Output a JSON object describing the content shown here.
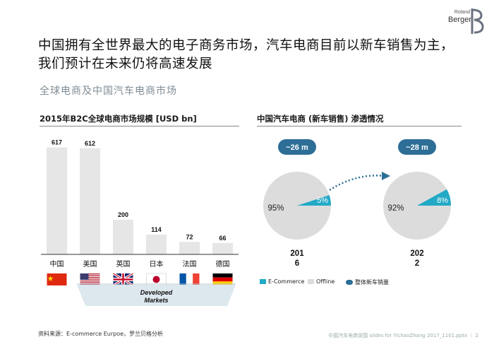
{
  "brand": {
    "top": "Roland",
    "name": "Berger"
  },
  "headline": "中国拥有全世界最大的电子商务市场，汽车电商目前以新车销售为主，我们预计在未来仍将高速发展",
  "subtitle": "全球电商及中国汽车电商市场",
  "colors": {
    "bar": "#e6e6e6",
    "pie_bg": "#dcdcdc",
    "accent": "#22a9c6",
    "pill": "#2c6e96",
    "bracket": "#dde7ee"
  },
  "left_panel": {
    "title": "2015年B2C全球电商市场规模 [USD bn]",
    "bracket_label_1": "Developed",
    "bracket_label_2": "Markets"
  },
  "right_panel": {
    "title": "中国汽车电商 (新车销售) 渗透情况",
    "legend": [
      "E-Commerce",
      "Offline",
      "整体新车销量"
    ]
  },
  "chart_data": [
    {
      "type": "bar",
      "title": "2015年B2C全球电商市场规模 [USD bn]",
      "categories": [
        "中国",
        "美国",
        "英国",
        "日本",
        "法国",
        "德国"
      ],
      "values": [
        617,
        612,
        200,
        114,
        72,
        66
      ],
      "flag_icons": [
        "china-flag-icon",
        "usa-flag-icon",
        "uk-flag-icon",
        "japan-flag-icon",
        "france-flag-icon",
        "germany-flag-icon"
      ],
      "ylim": [
        0,
        640
      ],
      "grid": false
    },
    {
      "type": "pie",
      "title": "中国汽车电商 (新车销售) 渗透情况",
      "pies": [
        {
          "year_top": "201",
          "year_bottom": "6",
          "total": "~26 m",
          "slices": [
            {
              "name": "E-Commerce",
              "value": 5,
              "label": "5%"
            },
            {
              "name": "Offline",
              "value": 95,
              "label": "95%"
            }
          ]
        },
        {
          "year_top": "202",
          "year_bottom": "2",
          "total": "~28 m",
          "slices": [
            {
              "name": "E-Commerce",
              "value": 8,
              "label": "8%"
            },
            {
              "name": "Offline",
              "value": 92,
              "label": "92%"
            }
          ]
        }
      ]
    }
  ],
  "source": "资料来源：E-commerce Eurpoe，罗兰贝格分析",
  "footer": "中国汽车电商突围 slides for YichaoZhang 2017_1101.pptx  ｜  2"
}
